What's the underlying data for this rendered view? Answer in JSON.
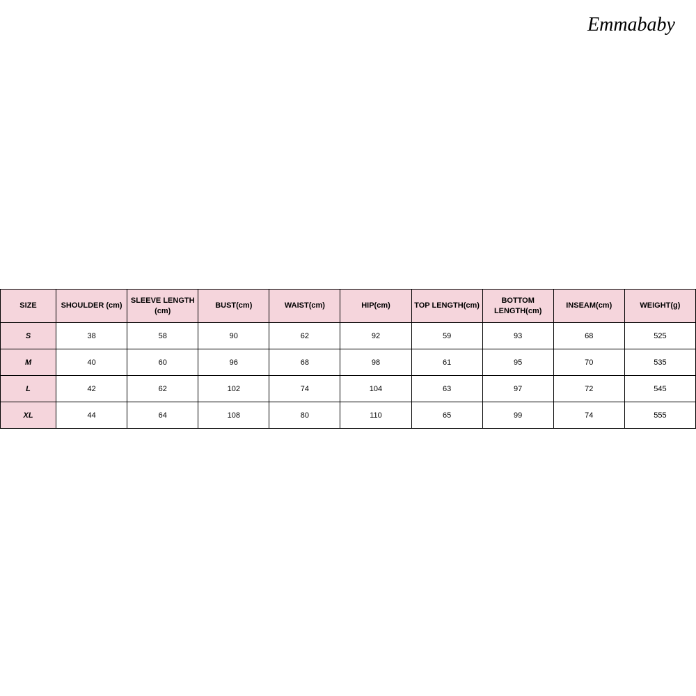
{
  "brand": "Emmababy",
  "table": {
    "header_bg": "#f5d5dc",
    "cell_bg": "#ffffff",
    "border_color": "#000000",
    "header_fontsize": 11,
    "cell_fontsize": 11,
    "columns": [
      "SIZE",
      "SHOULDER (cm)",
      "SLEEVE LENGTH (cm)",
      "BUST(cm)",
      "WAIST(cm)",
      "HIP(cm)",
      "TOP LENGTH(cm)",
      "BOTTOM LENGTH(cm)",
      "INSEAM(cm)",
      "WEIGHT(g)"
    ],
    "rows": [
      {
        "size": "S",
        "values": [
          "38",
          "58",
          "90",
          "62",
          "92",
          "59",
          "93",
          "68",
          "525"
        ]
      },
      {
        "size": "M",
        "values": [
          "40",
          "60",
          "96",
          "68",
          "98",
          "61",
          "95",
          "70",
          "535"
        ]
      },
      {
        "size": "L",
        "values": [
          "42",
          "62",
          "102",
          "74",
          "104",
          "63",
          "97",
          "72",
          "545"
        ]
      },
      {
        "size": "XL",
        "values": [
          "44",
          "64",
          "108",
          "80",
          "110",
          "65",
          "99",
          "74",
          "555"
        ]
      }
    ]
  }
}
